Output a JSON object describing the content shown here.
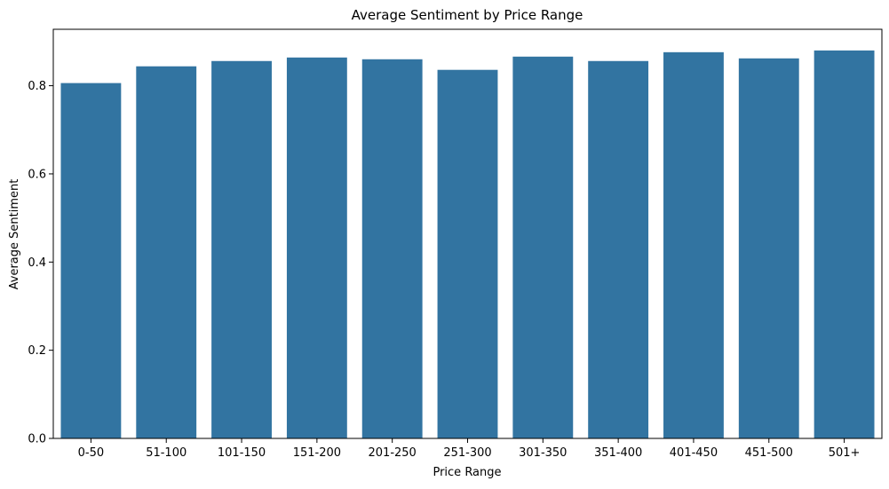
{
  "chart_data": {
    "type": "bar",
    "title": "Average Sentiment by Price Range",
    "xlabel": "Price Range",
    "ylabel": "Average Sentiment",
    "categories": [
      "0-50",
      "51-100",
      "101-150",
      "151-200",
      "201-250",
      "251-300",
      "301-350",
      "351-400",
      "401-450",
      "451-500",
      "501+"
    ],
    "values": [
      0.806,
      0.844,
      0.856,
      0.864,
      0.86,
      0.836,
      0.866,
      0.856,
      0.876,
      0.862,
      0.88
    ],
    "ylim": [
      0,
      0.928
    ],
    "yticks": [
      0.0,
      0.2,
      0.4,
      0.6,
      0.8
    ],
    "ytick_labels": [
      "0.0",
      "0.2",
      "0.4",
      "0.6",
      "0.8"
    ],
    "bar_color": "#3274a1",
    "grid": false,
    "legend": "none"
  }
}
